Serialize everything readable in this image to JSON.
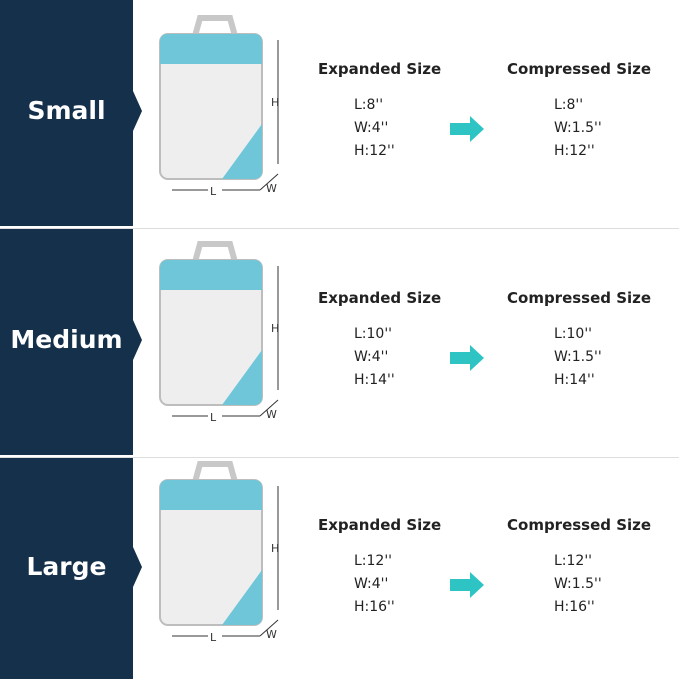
{
  "brand_color": "#14304b",
  "accent_color": "#2ec4c4",
  "expanded_header": "Expanded Size",
  "compressed_header": "Compressed Size",
  "axis_labels": {
    "h": "H",
    "l": "L",
    "w": "W"
  },
  "sizes": [
    {
      "name": "Small",
      "expanded": [
        "L:8''",
        "W:4''",
        "H:12''"
      ],
      "compressed": [
        "L:8''",
        "W:1.5''",
        "H:12''"
      ]
    },
    {
      "name": "Medium",
      "expanded": [
        "L:10''",
        "W:4''",
        "H:14''"
      ],
      "compressed": [
        "L:10''",
        "W:1.5''",
        "H:14''"
      ]
    },
    {
      "name": "Large",
      "expanded": [
        "L:12''",
        "W:4''",
        "H:16''"
      ],
      "compressed": [
        "L:12''",
        "W:1.5''",
        "H:16''"
      ]
    }
  ]
}
